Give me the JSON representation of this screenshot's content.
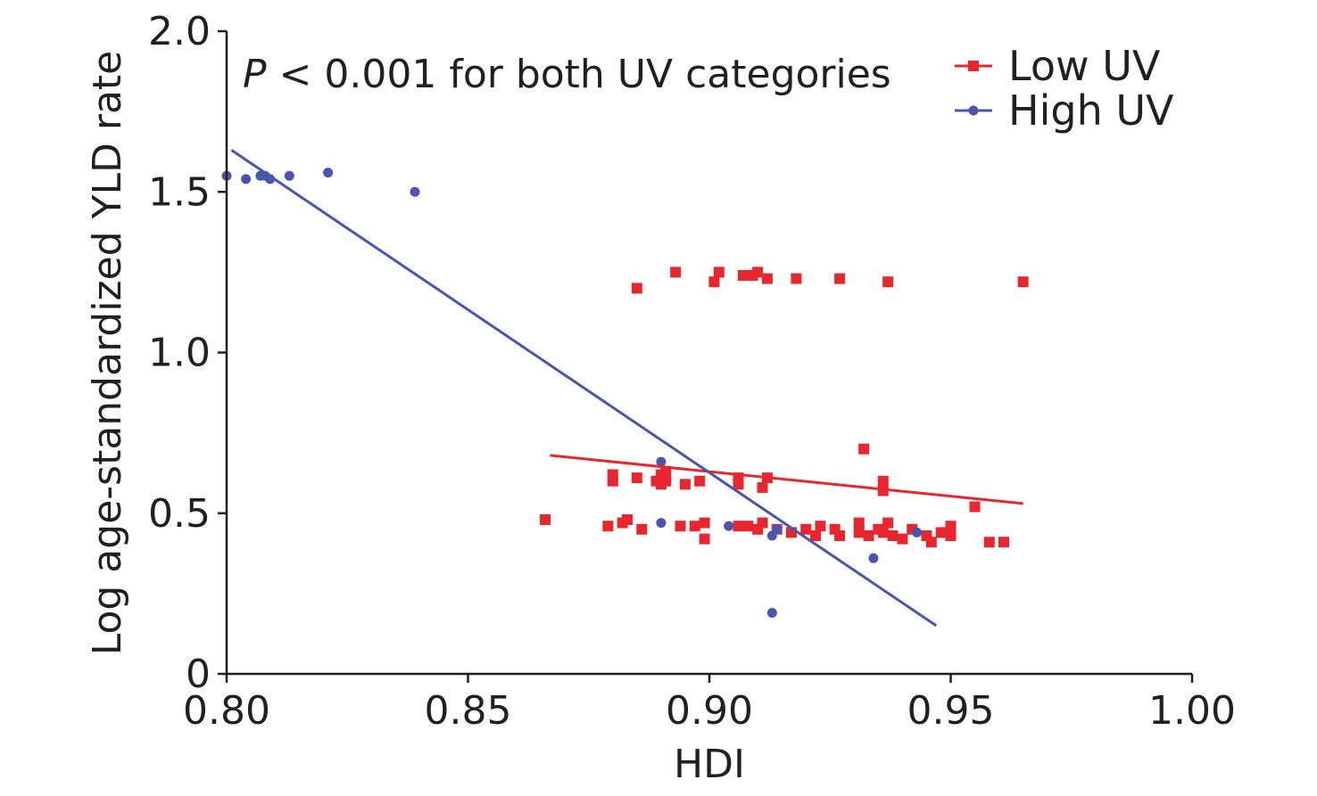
{
  "chart_data": {
    "type": "scatter",
    "title": "",
    "xlabel": "HDI",
    "ylabel": "Log age-standardized YLD rate",
    "xlim": [
      0.8,
      1.0
    ],
    "ylim": [
      0,
      2.0
    ],
    "x_ticks": [
      0.8,
      0.85,
      0.9,
      0.95,
      1.0
    ],
    "x_tick_labels": [
      "0.80",
      "0.85",
      "0.90",
      "0.95",
      "1.00"
    ],
    "y_ticks": [
      0,
      0.5,
      1.0,
      1.5,
      2.0
    ],
    "y_tick_labels": [
      "0",
      "0.5",
      "1.0",
      "1.5",
      "2.0"
    ],
    "grid": false,
    "legend_position": "top-right",
    "annotation": {
      "italic": "P",
      "rest": " < 0.001 for both UV categories"
    },
    "series": [
      {
        "name": "Low UV",
        "color": "#e8262d",
        "marker": "square",
        "fit_line": {
          "x": [
            0.867,
            0.965
          ],
          "y": [
            0.68,
            0.53
          ]
        },
        "points": [
          [
            0.866,
            0.48
          ],
          [
            0.879,
            0.46
          ],
          [
            0.88,
            0.6
          ],
          [
            0.88,
            0.62
          ],
          [
            0.882,
            0.47
          ],
          [
            0.883,
            0.48
          ],
          [
            0.885,
            0.61
          ],
          [
            0.885,
            1.2
          ],
          [
            0.886,
            0.45
          ],
          [
            0.889,
            0.6
          ],
          [
            0.89,
            0.59
          ],
          [
            0.89,
            0.62
          ],
          [
            0.891,
            0.6
          ],
          [
            0.891,
            0.63
          ],
          [
            0.893,
            1.25
          ],
          [
            0.894,
            0.46
          ],
          [
            0.895,
            0.59
          ],
          [
            0.897,
            0.46
          ],
          [
            0.898,
            0.6
          ],
          [
            0.899,
            0.42
          ],
          [
            0.899,
            0.47
          ],
          [
            0.901,
            1.22
          ],
          [
            0.902,
            1.25
          ],
          [
            0.906,
            0.46
          ],
          [
            0.906,
            0.59
          ],
          [
            0.906,
            0.61
          ],
          [
            0.907,
            1.24
          ],
          [
            0.908,
            0.46
          ],
          [
            0.909,
            1.24
          ],
          [
            0.91,
            0.45
          ],
          [
            0.91,
            1.25
          ],
          [
            0.911,
            0.47
          ],
          [
            0.911,
            0.58
          ],
          [
            0.912,
            0.61
          ],
          [
            0.912,
            1.23
          ],
          [
            0.914,
            0.45
          ],
          [
            0.917,
            0.44
          ],
          [
            0.918,
            1.23
          ],
          [
            0.92,
            0.45
          ],
          [
            0.922,
            0.43
          ],
          [
            0.923,
            0.46
          ],
          [
            0.926,
            0.45
          ],
          [
            0.927,
            0.43
          ],
          [
            0.927,
            1.23
          ],
          [
            0.931,
            0.47
          ],
          [
            0.931,
            0.44
          ],
          [
            0.932,
            0.7
          ],
          [
            0.933,
            0.43
          ],
          [
            0.935,
            0.45
          ],
          [
            0.936,
            0.44
          ],
          [
            0.936,
            0.57
          ],
          [
            0.936,
            0.6
          ],
          [
            0.937,
            0.47
          ],
          [
            0.937,
            1.22
          ],
          [
            0.938,
            0.43
          ],
          [
            0.94,
            0.42
          ],
          [
            0.942,
            0.45
          ],
          [
            0.945,
            0.43
          ],
          [
            0.946,
            0.41
          ],
          [
            0.948,
            0.44
          ],
          [
            0.95,
            0.43
          ],
          [
            0.95,
            0.46
          ],
          [
            0.955,
            0.52
          ],
          [
            0.958,
            0.41
          ],
          [
            0.961,
            0.41
          ],
          [
            0.965,
            1.22
          ]
        ]
      },
      {
        "name": "High UV",
        "color": "#4a55b0",
        "marker": "circle",
        "fit_line": {
          "x": [
            0.801,
            0.947
          ],
          "y": [
            1.63,
            0.15
          ]
        },
        "points": [
          [
            0.8,
            1.55
          ],
          [
            0.804,
            1.54
          ],
          [
            0.807,
            1.55
          ],
          [
            0.808,
            1.55
          ],
          [
            0.809,
            1.54
          ],
          [
            0.813,
            1.55
          ],
          [
            0.821,
            1.56
          ],
          [
            0.839,
            1.5
          ],
          [
            0.89,
            0.66
          ],
          [
            0.89,
            0.47
          ],
          [
            0.904,
            0.46
          ],
          [
            0.913,
            0.43
          ],
          [
            0.913,
            0.19
          ],
          [
            0.914,
            0.45
          ],
          [
            0.934,
            0.36
          ],
          [
            0.943,
            0.44
          ]
        ]
      }
    ]
  }
}
